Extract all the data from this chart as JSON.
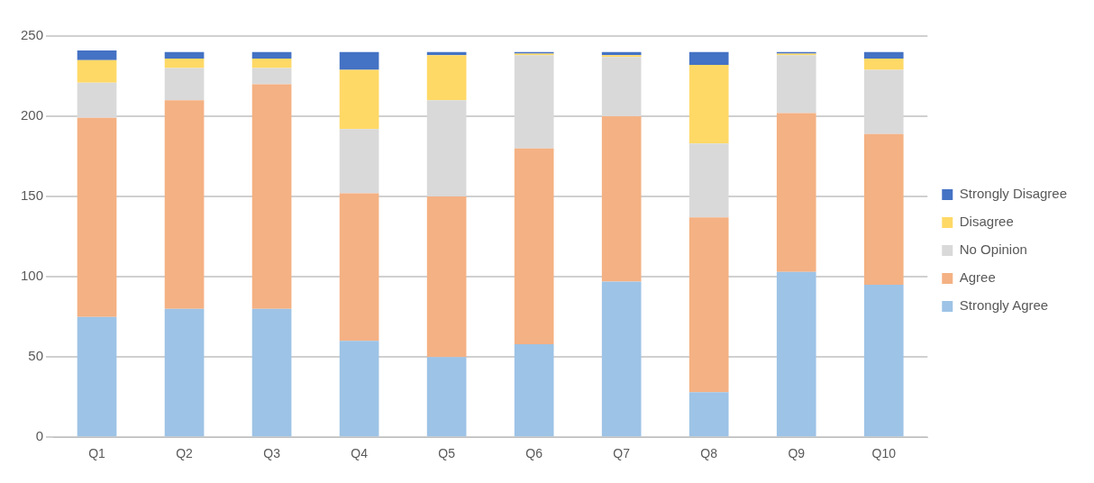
{
  "chart_data": {
    "type": "bar",
    "stacked": true,
    "categories": [
      "Q1",
      "Q2",
      "Q3",
      "Q4",
      "Q5",
      "Q6",
      "Q7",
      "Q8",
      "Q9",
      "Q10"
    ],
    "series": [
      {
        "name": "Strongly Agree",
        "color": "#9dc3e6",
        "values": [
          75,
          80,
          80,
          60,
          50,
          58,
          97,
          28,
          103,
          95
        ]
      },
      {
        "name": "Agree",
        "color": "#f4b183",
        "values": [
          124,
          130,
          140,
          92,
          100,
          122,
          103,
          109,
          99,
          94
        ]
      },
      {
        "name": "No Opinion",
        "color": "#d9d9d9",
        "values": [
          22,
          20,
          10,
          40,
          60,
          58,
          37,
          46,
          36,
          40
        ]
      },
      {
        "name": "Disagree",
        "color": "#ffd966",
        "values": [
          14,
          6,
          6,
          37,
          28,
          1,
          1,
          49,
          1,
          7
        ]
      },
      {
        "name": "Strongly Disagree",
        "color": "#4472c4",
        "values": [
          6,
          4,
          4,
          11,
          2,
          1,
          2,
          8,
          1,
          4
        ]
      }
    ],
    "ylim": [
      0,
      250
    ],
    "yticks": [
      0,
      50,
      100,
      150,
      200,
      250
    ],
    "grid": "y",
    "legend": "right"
  }
}
